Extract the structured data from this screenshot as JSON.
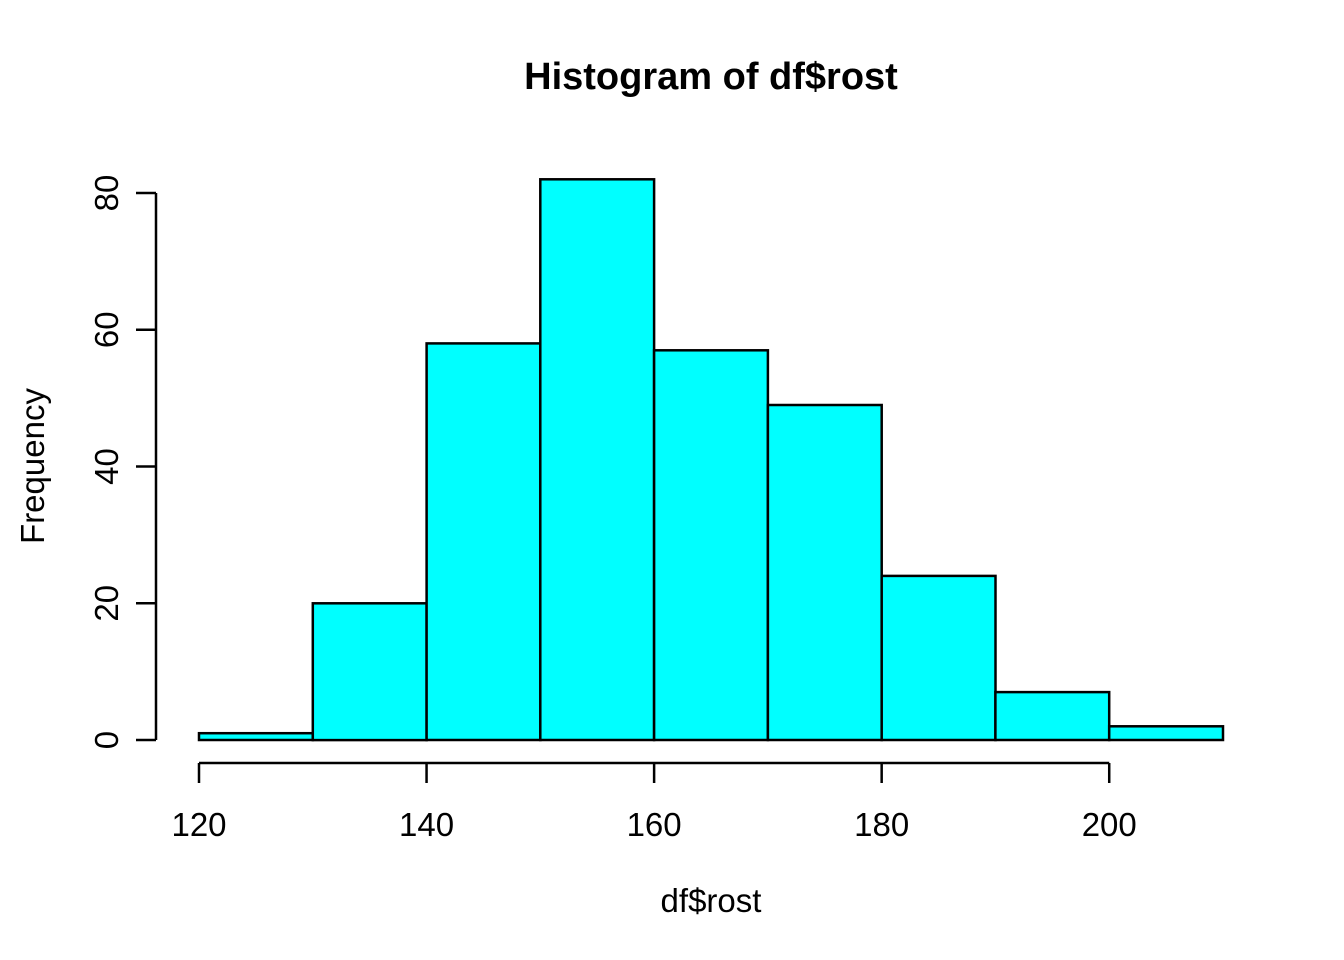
{
  "chart_data": {
    "type": "bar",
    "subtype": "histogram",
    "title": "Histogram of df$rost",
    "xlabel": "df$rost",
    "ylabel": "Frequency",
    "bin_edges": [
      120,
      130,
      140,
      150,
      160,
      170,
      180,
      190,
      200,
      210
    ],
    "counts": [
      1,
      20,
      58,
      82,
      57,
      49,
      24,
      7,
      2
    ],
    "x_ticks": [
      120,
      140,
      160,
      180,
      200
    ],
    "y_ticks": [
      0,
      20,
      40,
      60,
      80
    ],
    "xlim": [
      120,
      210
    ],
    "ylim": [
      0,
      82
    ],
    "grid": false,
    "legend_position": "none",
    "bar_fill": "#00FFFF",
    "bar_stroke": "#000000",
    "axis_color": "#000000",
    "text_color": "#000000",
    "background": "#FFFFFF"
  }
}
